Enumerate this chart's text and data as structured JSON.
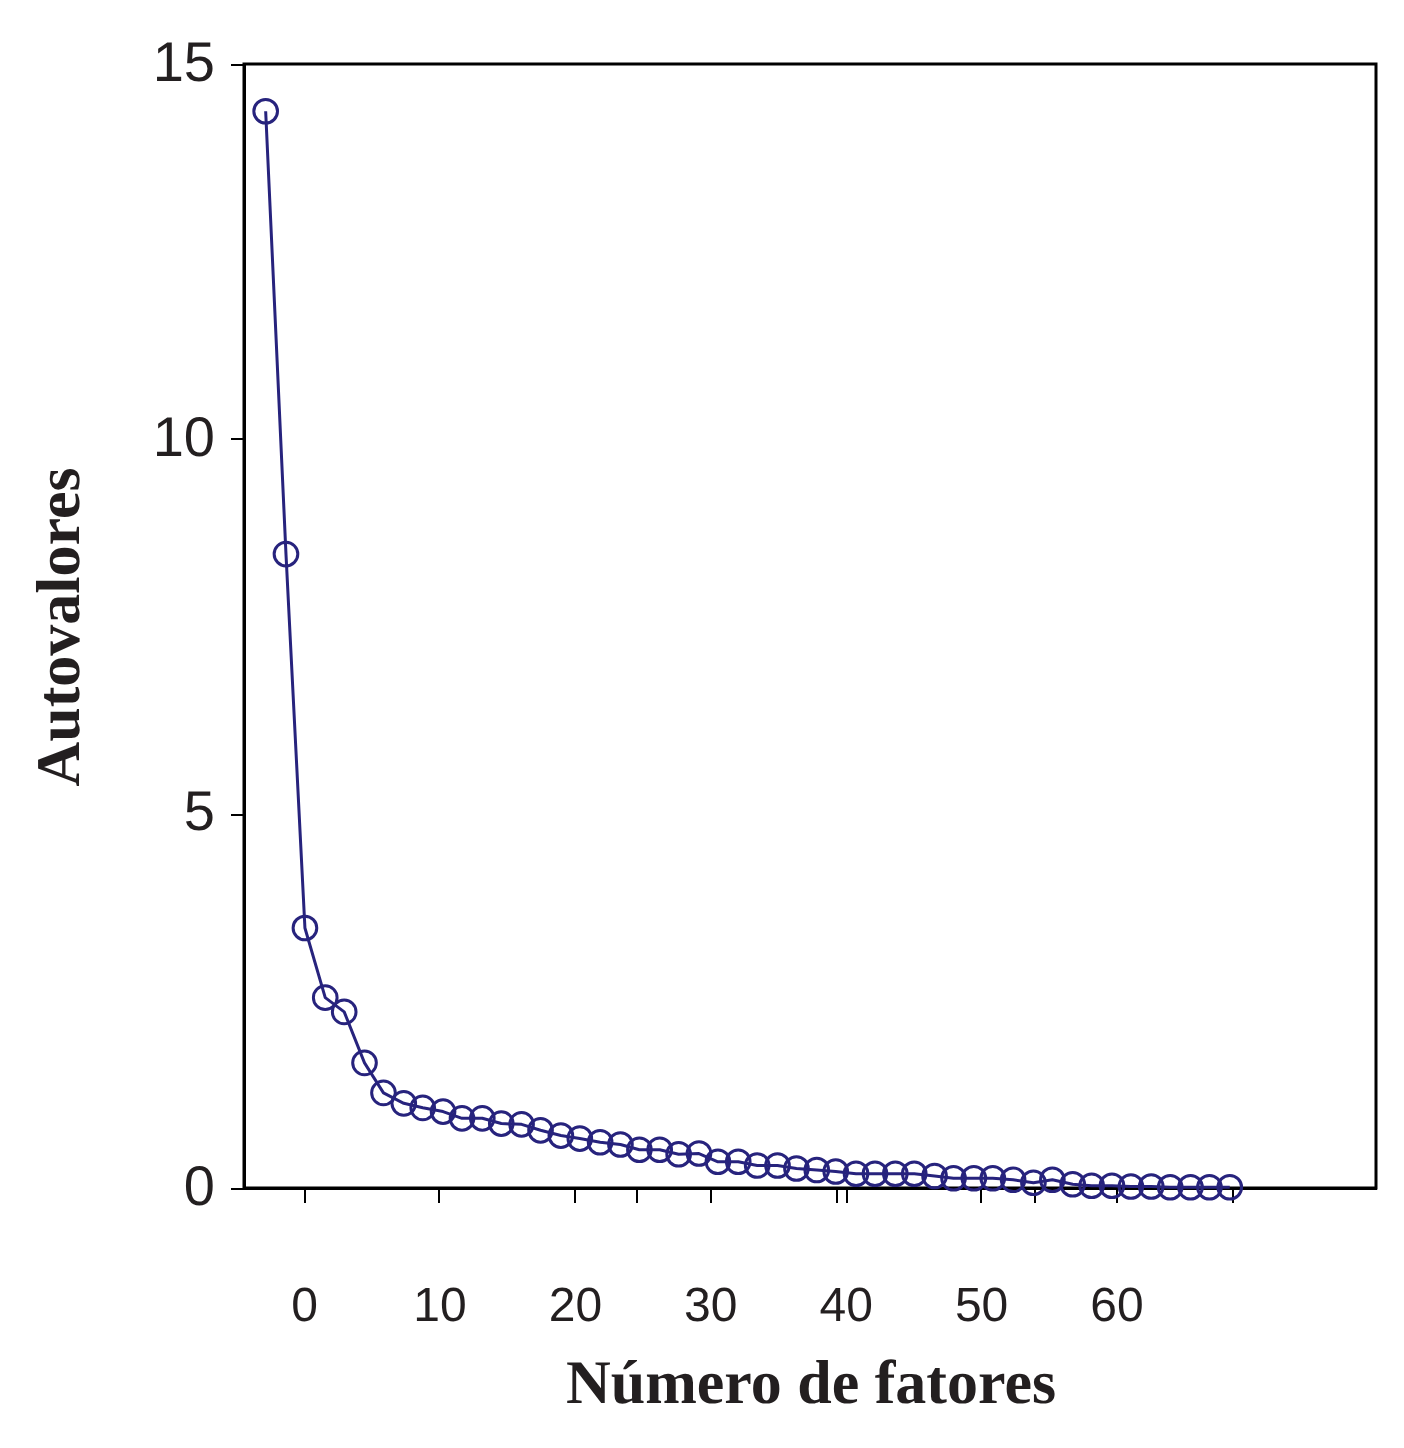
{
  "chart_data": {
    "type": "line",
    "xlabel": "Número de fatores",
    "ylabel": "Autovalores",
    "x": [
      -2.8,
      -1.3,
      0.1,
      1.6,
      3.0,
      4.5,
      5.9,
      7.4,
      8.8,
      10.3,
      11.7,
      13.2,
      14.6,
      16.1,
      17.5,
      19.0,
      20.4,
      21.9,
      23.4,
      24.8,
      26.3,
      27.7,
      29.2,
      30.6,
      32.1,
      33.5,
      35.0,
      36.4,
      37.9,
      39.3,
      40.8,
      42.2,
      43.7,
      45.1,
      46.6,
      48.0,
      49.5,
      50.9,
      52.4,
      53.9,
      55.3,
      56.8,
      58.2,
      59.7,
      61.1,
      62.6,
      64.0,
      65.5,
      66.9,
      68.4
    ],
    "series": [
      {
        "color": "#27237d",
        "values": [
          14.37,
          8.46,
          3.47,
          2.54,
          2.35,
          1.67,
          1.27,
          1.13,
          1.07,
          1.02,
          0.93,
          0.93,
          0.86,
          0.85,
          0.77,
          0.7,
          0.66,
          0.61,
          0.58,
          0.51,
          0.51,
          0.45,
          0.46,
          0.35,
          0.35,
          0.3,
          0.3,
          0.26,
          0.24,
          0.22,
          0.19,
          0.19,
          0.19,
          0.19,
          0.16,
          0.13,
          0.13,
          0.13,
          0.11,
          0.07,
          0.11,
          0.05,
          0.03,
          0.03,
          0.02,
          0.02,
          0.01,
          0.01,
          0.01,
          0.01
        ]
      }
    ],
    "xlim": [
      -4.4,
      79.2
    ],
    "ylim": [
      0,
      15
    ],
    "xticks": [
      0,
      10,
      20,
      30,
      40,
      50,
      60,
      {
        "value": 24.6,
        "label": null
      },
      {
        "value": 39.3,
        "label": null
      },
      {
        "value": 53.9,
        "label": null
      },
      {
        "value": 68.5,
        "label": null
      }
    ],
    "yticks": [
      0,
      5,
      10,
      15
    ],
    "marker": "circle",
    "line_style": "solid",
    "grid": false,
    "legend": false
  }
}
